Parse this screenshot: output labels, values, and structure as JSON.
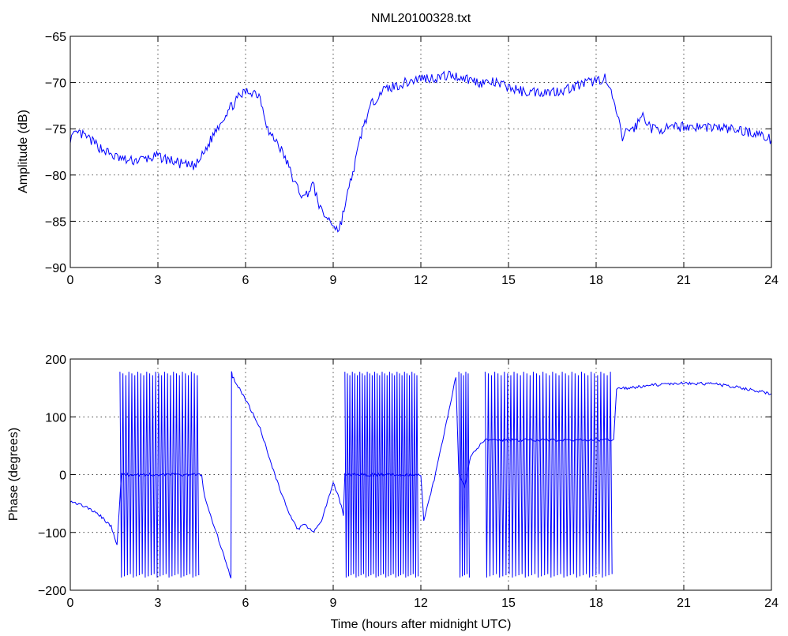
{
  "figure": {
    "title": "NML20100328.txt",
    "line_color": "#0000ff"
  },
  "chart_data": [
    {
      "type": "line",
      "title": "NML20100328.txt",
      "xlabel": "",
      "ylabel": "Amplitude (dB)",
      "xlim": [
        0,
        24
      ],
      "ylim": [
        -90,
        -65
      ],
      "xticks": [
        0,
        3,
        6,
        9,
        12,
        15,
        18,
        21,
        24
      ],
      "yticks": [
        -90,
        -85,
        -80,
        -75,
        -70,
        -65
      ],
      "grid": true,
      "series": [
        {
          "x": [
            0,
            0.3,
            0.6,
            1.0,
            1.5,
            2.0,
            2.5,
            3.0,
            3.5,
            4.0,
            4.3,
            4.6,
            5.0,
            5.4,
            5.8,
            6.0,
            6.3,
            6.5,
            6.8,
            7.1,
            7.4,
            7.7,
            8.0,
            8.3,
            8.6,
            8.9,
            9.2,
            9.5,
            9.8,
            10.0,
            10.3,
            10.6,
            11.0,
            11.5,
            12.0,
            12.5,
            13.0,
            13.5,
            14.0,
            14.5,
            15.0,
            15.5,
            16.0,
            16.5,
            17.0,
            17.5,
            18.0,
            18.3,
            18.6,
            18.9,
            19.1,
            19.3,
            19.6,
            19.9,
            20.5,
            21.0,
            21.5,
            22.0,
            22.5,
            23.0,
            23.5,
            24.0
          ],
          "values": [
            -76.0,
            -75.5,
            -76.0,
            -77.0,
            -78.0,
            -78.5,
            -78.3,
            -78.0,
            -78.5,
            -79.0,
            -79.0,
            -77.5,
            -75.0,
            -73.0,
            -71.5,
            -71.0,
            -71.0,
            -71.5,
            -75.5,
            -76.5,
            -78.5,
            -81.0,
            -82.5,
            -81.0,
            -84.0,
            -85.0,
            -86.0,
            -82.0,
            -78.0,
            -75.0,
            -72.5,
            -71.0,
            -70.5,
            -70.0,
            -69.5,
            -69.5,
            -69.2,
            -69.5,
            -70.0,
            -70.0,
            -70.5,
            -71.0,
            -71.0,
            -71.0,
            -70.7,
            -70.2,
            -69.8,
            -69.5,
            -72.0,
            -76.0,
            -75.0,
            -75.0,
            -73.5,
            -75.0,
            -75.0,
            -74.7,
            -74.8,
            -74.8,
            -75.0,
            -75.2,
            -75.5,
            -76.2
          ]
        }
      ]
    },
    {
      "type": "line",
      "title": "",
      "xlabel": "Time (hours after midnight UTC)",
      "ylabel": "Phase (degrees)",
      "xlim": [
        0,
        24
      ],
      "ylim": [
        -200,
        200
      ],
      "xticks": [
        0,
        3,
        6,
        9,
        12,
        15,
        18,
        21,
        24
      ],
      "yticks": [
        -200,
        -100,
        0,
        100,
        200
      ],
      "grid": true,
      "series": [
        {
          "x": [
            0,
            0.5,
            1.0,
            1.4,
            1.6,
            1.75,
            4.5,
            4.6,
            5.0,
            5.5,
            5.52,
            5.55,
            6.0,
            6.5,
            7.0,
            7.5,
            7.8,
            8.0,
            8.3,
            8.6,
            8.9,
            9.0,
            9.2,
            9.35,
            9.4,
            12.0,
            12.1,
            12.5,
            13.0,
            13.2,
            13.3,
            13.5,
            13.7,
            14.0,
            14.2,
            18.6,
            18.7,
            19.5,
            20.0,
            21.0,
            22.0,
            23.0,
            24.0
          ],
          "values": [
            -45,
            -55,
            -70,
            -90,
            -120,
            0,
            0,
            -40,
            -100,
            -180,
            180,
            170,
            130,
            80,
            0,
            -70,
            -95,
            -85,
            -100,
            -80,
            -30,
            -15,
            -40,
            -70,
            0,
            0,
            -80,
            0,
            120,
            170,
            0,
            -20,
            30,
            50,
            60,
            60,
            148,
            152,
            155,
            158,
            157,
            150,
            140
          ]
        }
      ],
      "oscillation_bands": [
        {
          "x_start": 1.7,
          "x_end": 4.45,
          "count": 27
        },
        {
          "x_start": 9.4,
          "x_end": 11.95,
          "count": 30
        },
        {
          "x_start": 13.3,
          "x_end": 13.7,
          "count": 5
        },
        {
          "x_start": 14.2,
          "x_end": 18.6,
          "count": 40
        }
      ],
      "band_range": [
        -178,
        178
      ]
    }
  ]
}
